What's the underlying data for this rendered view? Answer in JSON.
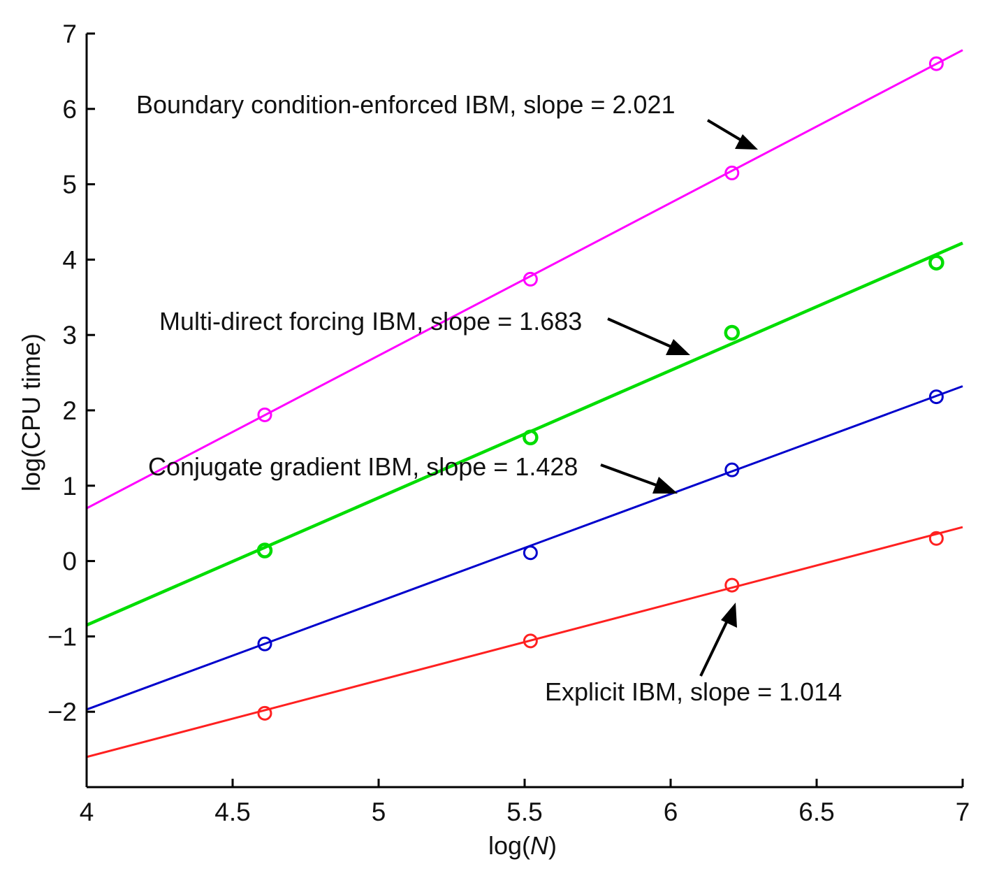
{
  "chart_data": {
    "type": "line",
    "title": "",
    "xlabel_prefix": "log(",
    "xlabel_var": "N",
    "xlabel_suffix": ")",
    "ylabel": "log(CPU time)",
    "xlim": [
      4,
      7
    ],
    "ylim": [
      -3,
      7
    ],
    "x_ticks": [
      4,
      4.5,
      5,
      5.5,
      6,
      6.5,
      7
    ],
    "x_tick_labels": [
      "4",
      "4.5",
      "5",
      "5.5",
      "6",
      "6.5",
      "7"
    ],
    "y_ticks": [
      -2,
      -1,
      0,
      1,
      2,
      3,
      4,
      5,
      6,
      7
    ],
    "y_tick_labels": [
      "−2",
      "−1",
      "0",
      "1",
      "2",
      "3",
      "4",
      "5",
      "6",
      "7"
    ],
    "grid": false,
    "series": [
      {
        "name": "Boundary condition-enforced IBM",
        "color": "#ff00ff",
        "slope": 2.021,
        "fit_line": [
          [
            4,
            0.7
          ],
          [
            7,
            6.78
          ]
        ],
        "points": [
          [
            4.61,
            1.94
          ],
          [
            5.52,
            3.74
          ],
          [
            6.21,
            5.15
          ],
          [
            6.91,
            6.6
          ]
        ],
        "annotation": "Boundary condition-enforced IBM, slope = 2.021"
      },
      {
        "name": "Multi-direct forcing IBM",
        "color": "#00dd00",
        "slope": 1.683,
        "fit_line": [
          [
            4,
            -0.85
          ],
          [
            7,
            4.22
          ]
        ],
        "points": [
          [
            4.61,
            0.14
          ],
          [
            5.52,
            1.64
          ],
          [
            6.21,
            3.03
          ],
          [
            6.91,
            3.96
          ]
        ],
        "annotation": "Multi-direct forcing IBM, slope = 1.683"
      },
      {
        "name": "Conjugate gradient IBM",
        "color": "#0000cc",
        "slope": 1.428,
        "fit_line": [
          [
            4,
            -1.97
          ],
          [
            7,
            2.32
          ]
        ],
        "points": [
          [
            4.61,
            -1.1
          ],
          [
            5.52,
            0.11
          ],
          [
            6.21,
            1.21
          ],
          [
            6.91,
            2.18
          ]
        ],
        "annotation": "Conjugate gradient IBM, slope = 1.428"
      },
      {
        "name": "Explicit IBM",
        "color": "#ff2020",
        "slope": 1.014,
        "fit_line": [
          [
            4,
            -2.6
          ],
          [
            7,
            0.45
          ]
        ],
        "points": [
          [
            4.61,
            -2.02
          ],
          [
            5.52,
            -1.06
          ],
          [
            6.21,
            -0.32
          ],
          [
            6.91,
            0.3
          ]
        ],
        "annotation": "Explicit IBM, slope = 1.014"
      }
    ]
  }
}
